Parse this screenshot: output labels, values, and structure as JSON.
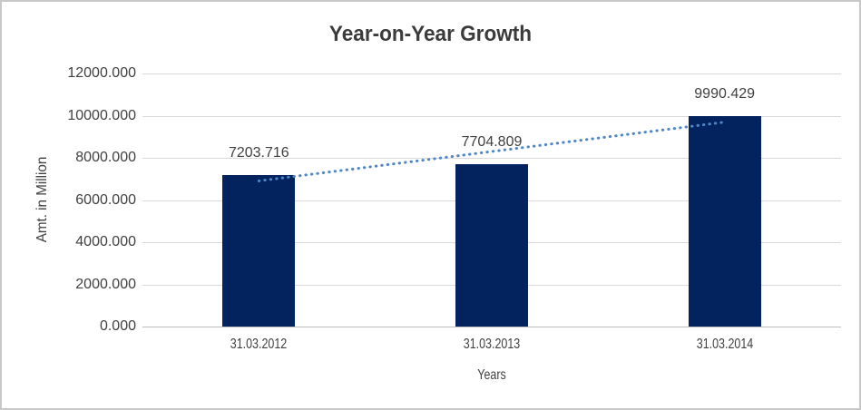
{
  "frame": {
    "background": "#ffffff",
    "border_color": "#c8c8c8"
  },
  "chart_data": {
    "type": "bar",
    "title": "Year-on-Year Growth",
    "xlabel": "Years",
    "ylabel": "Amt. in Million",
    "categories": [
      "31.03.2012",
      "31.03.2013",
      "31.03.2014"
    ],
    "values": [
      7203.716,
      7704.809,
      9990.429
    ],
    "data_labels": [
      "7203.716",
      "7704.809",
      "9990.429"
    ],
    "ylim": [
      0,
      12000
    ],
    "ytick_step": 2000,
    "ytick_labels": [
      "0.000",
      "2000.000",
      "4000.000",
      "6000.000",
      "8000.000",
      "10000.000",
      "12000.000"
    ],
    "grid": true,
    "legend_position": "none",
    "bar_color": "#02235e",
    "text_color": "#404040",
    "title_color": "#3b3b3b",
    "gridline_color": "#d9d9d9",
    "axis_line_color": "#bfbfbf",
    "trendline": {
      "type": "linear",
      "style": "dotted",
      "color": "#4e86c8",
      "start_value": 6906.3,
      "end_value": 9693.0
    }
  }
}
